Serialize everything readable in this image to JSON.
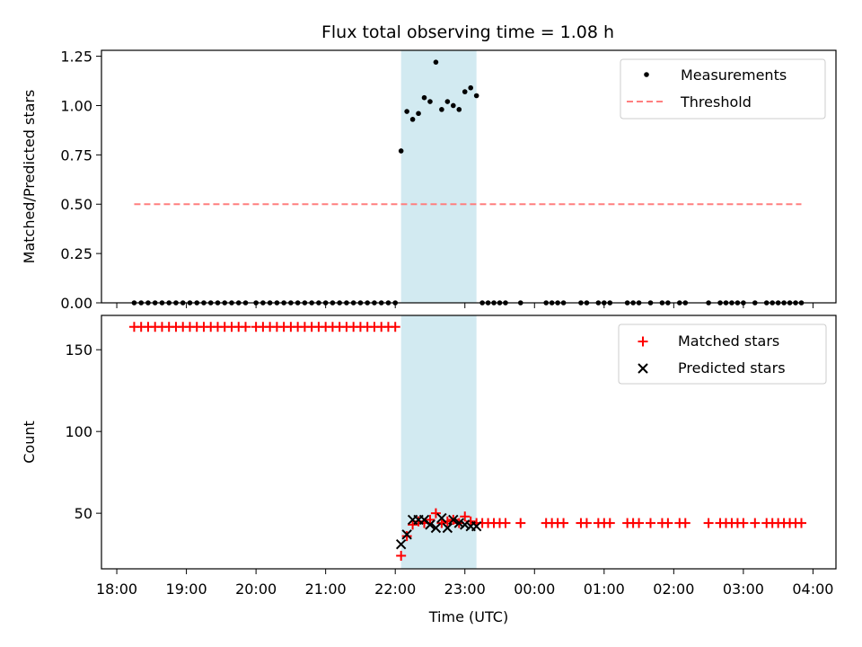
{
  "chart_data": [
    {
      "type": "scatter",
      "title": "Flux total observing time = 1.08 h",
      "ylabel": "Matched/Predicted stars",
      "xlabel": "",
      "ylim": [
        0,
        1.28
      ],
      "yticks": [
        0.0,
        0.25,
        0.5,
        0.75,
        1.0,
        1.25
      ],
      "ytick_labels": [
        "0.00",
        "0.25",
        "0.50",
        "0.75",
        "1.00",
        "1.25"
      ],
      "legend_position": "top-right",
      "shaded_interval": {
        "start": "22:05",
        "end": "23:10",
        "color": "#add8e6"
      },
      "series": [
        {
          "name": "Measurements",
          "marker": "dot",
          "color": "#000000",
          "x": [
            "18:15",
            "18:21",
            "18:27",
            "18:33",
            "18:39",
            "18:45",
            "18:51",
            "18:57",
            "19:03",
            "19:09",
            "19:15",
            "19:21",
            "19:27",
            "19:33",
            "19:39",
            "19:45",
            "19:51",
            "20:00",
            "20:06",
            "20:12",
            "20:18",
            "20:24",
            "20:30",
            "20:36",
            "20:42",
            "20:48",
            "20:54",
            "21:00",
            "21:06",
            "21:12",
            "21:18",
            "21:24",
            "21:30",
            "21:36",
            "21:42",
            "21:48",
            "21:54",
            "22:00",
            "22:05",
            "22:10",
            "22:15",
            "22:20",
            "22:25",
            "22:30",
            "22:35",
            "22:40",
            "22:45",
            "22:50",
            "22:55",
            "23:00",
            "23:05",
            "23:10",
            "23:15",
            "23:20",
            "23:25",
            "23:30",
            "23:35",
            "23:48",
            "24:10",
            "24:15",
            "24:20",
            "24:25",
            "24:40",
            "24:45",
            "24:55",
            "25:00",
            "25:05",
            "25:20",
            "25:25",
            "25:30",
            "25:40",
            "25:50",
            "25:55",
            "26:05",
            "26:10",
            "26:30",
            "26:40",
            "26:45",
            "26:50",
            "26:55",
            "27:00",
            "27:10",
            "27:20",
            "27:25",
            "27:30",
            "27:35",
            "27:40",
            "27:45",
            "27:50"
          ],
          "y": [
            0,
            0,
            0,
            0,
            0,
            0,
            0,
            0,
            0,
            0,
            0,
            0,
            0,
            0,
            0,
            0,
            0,
            0,
            0,
            0,
            0,
            0,
            0,
            0,
            0,
            0,
            0,
            0,
            0,
            0,
            0,
            0,
            0,
            0,
            0,
            0,
            0,
            0,
            0.77,
            0.97,
            0.93,
            0.96,
            1.04,
            1.02,
            1.22,
            0.98,
            1.02,
            1.0,
            0.98,
            1.07,
            1.09,
            1.05,
            0,
            0,
            0,
            0,
            0,
            0,
            0,
            0,
            0,
            0,
            0,
            0,
            0,
            0,
            0,
            0,
            0,
            0,
            0,
            0,
            0,
            0,
            0,
            0,
            0,
            0,
            0,
            0,
            0,
            0,
            0,
            0,
            0,
            0,
            0,
            0,
            0
          ]
        },
        {
          "name": "Threshold",
          "marker": "dashed-line",
          "color": "#ff7f7f",
          "x": [
            "18:15",
            "27:50"
          ],
          "y": [
            0.5,
            0.5
          ]
        }
      ]
    },
    {
      "type": "scatter",
      "title": "",
      "ylabel": "Count",
      "xlabel": "Time (UTC)",
      "ylim": [
        16,
        171
      ],
      "yticks": [
        50,
        100,
        150
      ],
      "ytick_labels": [
        "50",
        "100",
        "150"
      ],
      "xticks": [
        "18:00",
        "19:00",
        "20:00",
        "21:00",
        "22:00",
        "23:00",
        "00:00",
        "01:00",
        "02:00",
        "03:00",
        "04:00"
      ],
      "legend_position": "top-right",
      "shaded_interval": {
        "start": "22:05",
        "end": "23:10",
        "color": "#add8e6"
      },
      "series": [
        {
          "name": "Matched stars",
          "marker": "plus",
          "color": "#ff0000",
          "x": [
            "18:15",
            "18:21",
            "18:27",
            "18:33",
            "18:39",
            "18:45",
            "18:51",
            "18:57",
            "19:03",
            "19:09",
            "19:15",
            "19:21",
            "19:27",
            "19:33",
            "19:39",
            "19:45",
            "19:51",
            "20:00",
            "20:06",
            "20:12",
            "20:18",
            "20:24",
            "20:30",
            "20:36",
            "20:42",
            "20:48",
            "20:54",
            "21:00",
            "21:06",
            "21:12",
            "21:18",
            "21:24",
            "21:30",
            "21:36",
            "21:42",
            "21:48",
            "21:54",
            "22:00",
            "22:05",
            "22:10",
            "22:15",
            "22:20",
            "22:25",
            "22:30",
            "22:35",
            "22:40",
            "22:45",
            "22:50",
            "22:55",
            "23:00",
            "23:05",
            "23:10",
            "23:15",
            "23:20",
            "23:25",
            "23:30",
            "23:35",
            "23:48",
            "24:10",
            "24:15",
            "24:20",
            "24:25",
            "24:40",
            "24:45",
            "24:55",
            "25:00",
            "25:05",
            "25:20",
            "25:25",
            "25:30",
            "25:40",
            "25:50",
            "25:55",
            "26:05",
            "26:10",
            "26:30",
            "26:40",
            "26:45",
            "26:50",
            "26:55",
            "27:00",
            "27:10",
            "27:20",
            "27:25",
            "27:30",
            "27:35",
            "27:40",
            "27:45",
            "27:50"
          ],
          "y": [
            164,
            164,
            164,
            164,
            164,
            164,
            164,
            164,
            164,
            164,
            164,
            164,
            164,
            164,
            164,
            164,
            164,
            164,
            164,
            164,
            164,
            164,
            164,
            164,
            164,
            164,
            164,
            164,
            164,
            164,
            164,
            164,
            164,
            164,
            164,
            164,
            164,
            164,
            24,
            36,
            43,
            45,
            44,
            46,
            50,
            44,
            45,
            46,
            44,
            48,
            45,
            44,
            44,
            44,
            44,
            44,
            44,
            44,
            44,
            44,
            44,
            44,
            44,
            44,
            44,
            44,
            44,
            44,
            44,
            44,
            44,
            44,
            44,
            44,
            44,
            44,
            44,
            44,
            44,
            44,
            44,
            44,
            44,
            44,
            44,
            44,
            44,
            44,
            44
          ]
        },
        {
          "name": "Predicted stars",
          "marker": "x",
          "color": "#000000",
          "x": [
            "22:05",
            "22:10",
            "22:15",
            "22:20",
            "22:25",
            "22:30",
            "22:35",
            "22:40",
            "22:45",
            "22:50",
            "22:55",
            "23:00",
            "23:05",
            "23:10"
          ],
          "y": [
            31,
            37,
            46,
            46,
            46,
            43,
            41,
            47,
            41,
            46,
            44,
            43,
            42,
            42
          ]
        }
      ]
    }
  ]
}
